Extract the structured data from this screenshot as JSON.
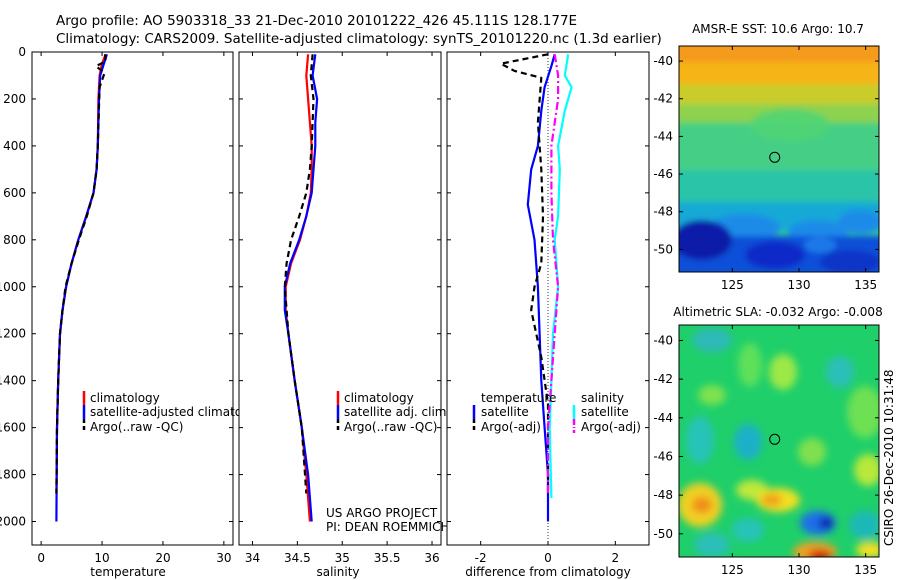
{
  "header": {
    "line1": "Argo profile: AO 5903318_33 21-Dec-2010 20101222_426 45.111S 128.177E",
    "line2": "Climatology: CARS2009. Satellite-adjusted climatology: synTS_20101220.nc (1.3d earlier)"
  },
  "colors": {
    "climatology": "#ff0000",
    "satellite": "#0000ff",
    "argo": "#000000",
    "sal_satellite": "#00ffff",
    "sal_argo": "#ff00ff",
    "map_marker": "#000000"
  },
  "credits": {
    "project": "US ARGO PROJECT",
    "pi": "PI: DEAN ROEMMICH",
    "stamp": "CSIRO 26-Dec-2010 10:31:48"
  },
  "chart_data": [
    {
      "type": "line",
      "xlabel": "temperature",
      "ylabel": "",
      "xlim": [
        -1.5,
        31.5
      ],
      "ylim": [
        2100,
        0
      ],
      "xticks": [
        0,
        10,
        20,
        30
      ],
      "yticks": [
        0,
        200,
        400,
        600,
        800,
        1000,
        1200,
        1400,
        1600,
        1800,
        2000
      ],
      "legend": {
        "placement": "lower-right",
        "entries": [
          "climatology",
          "satellite-adjusted climatology",
          "Argo(..raw -QC)"
        ]
      },
      "series": [
        {
          "name": "climatology",
          "color_key": "climatology",
          "dash": "solid",
          "x": [
            10.6,
            10.0,
            9.6,
            9.4,
            9.3,
            9.1,
            8.6,
            7.4,
            6.1,
            5.0,
            4.1,
            3.5,
            3.1,
            2.8,
            2.6,
            2.5
          ],
          "y": [
            10,
            50,
            100,
            200,
            400,
            500,
            600,
            700,
            800,
            900,
            1000,
            1100,
            1200,
            1400,
            1600,
            1880
          ]
        },
        {
          "name": "satellite-adjusted climatology",
          "color_key": "satellite",
          "dash": "solid",
          "x": [
            10.8,
            10.3,
            9.7,
            9.5,
            9.3,
            9.1,
            8.6,
            7.4,
            6.1,
            5.0,
            4.1,
            3.5,
            3.1,
            2.8,
            2.6,
            2.5
          ],
          "y": [
            10,
            50,
            100,
            200,
            400,
            500,
            600,
            700,
            800,
            900,
            1000,
            1100,
            1200,
            1400,
            1600,
            2000
          ]
        },
        {
          "name": "Argo(..raw -QC)",
          "color_key": "argo",
          "dash": "dashed",
          "x": [
            10.5,
            10.6,
            9.0,
            10.4,
            9.6,
            9.3,
            9.1,
            8.6,
            7.5,
            6.2,
            5.0,
            4.0,
            3.5,
            3.1,
            2.8,
            2.6,
            2.5
          ],
          "y": [
            10,
            40,
            60,
            90,
            150,
            400,
            500,
            600,
            700,
            800,
            900,
            1000,
            1100,
            1200,
            1400,
            1600,
            1880
          ]
        }
      ]
    },
    {
      "type": "line",
      "xlabel": "salinity",
      "ylabel": "",
      "xlim": [
        33.85,
        36.1
      ],
      "ylim": [
        2100,
        0
      ],
      "xticks": [
        34,
        34.5,
        35,
        35.5,
        36
      ],
      "xticklabels": [
        "34",
        "34.5",
        "35",
        "35.5",
        "36"
      ],
      "legend": {
        "placement": "lower-right",
        "entries": [
          "climatology",
          "satellite adj. clim.",
          "Argo(..raw -QC)"
        ]
      },
      "series": [
        {
          "name": "climatology",
          "color_key": "climatology",
          "dash": "solid",
          "x": [
            34.62,
            34.6,
            34.62,
            34.64,
            34.66,
            34.66,
            34.65,
            34.6,
            34.53,
            34.43,
            34.37,
            34.37,
            34.4,
            34.47,
            34.55,
            34.6,
            34.64
          ],
          "y": [
            10,
            100,
            200,
            300,
            400,
            500,
            600,
            700,
            800,
            900,
            1000,
            1100,
            1200,
            1400,
            1600,
            1800,
            2000
          ]
        },
        {
          "name": "satellite adj. clim.",
          "color_key": "satellite",
          "dash": "solid",
          "x": [
            34.7,
            34.67,
            34.72,
            34.7,
            34.7,
            34.68,
            34.66,
            34.6,
            34.52,
            34.42,
            34.36,
            34.36,
            34.4,
            34.47,
            34.55,
            34.62,
            34.66
          ],
          "y": [
            10,
            100,
            200,
            300,
            400,
            500,
            600,
            700,
            800,
            900,
            1000,
            1100,
            1200,
            1400,
            1600,
            1800,
            2000
          ]
        },
        {
          "name": "Argo(..raw -QC)",
          "color_key": "argo",
          "dash": "dashed",
          "x": [
            34.67,
            34.65,
            34.68,
            34.66,
            34.64,
            34.6,
            34.52,
            34.43,
            34.38,
            34.36,
            34.4,
            34.47,
            34.55,
            34.6
          ],
          "y": [
            10,
            100,
            200,
            400,
            500,
            600,
            700,
            800,
            900,
            1000,
            1200,
            1400,
            1600,
            1880
          ]
        }
      ]
    },
    {
      "type": "line",
      "xlabel": "difference from climatology",
      "ylabel": "",
      "xlim": [
        -3.0,
        3.0
      ],
      "ylim": [
        2100,
        0
      ],
      "xticks": [
        -2,
        0,
        2
      ],
      "legend": {
        "placement": "lower-center",
        "columns": [
          {
            "title": "temperature",
            "entries": [
              "satellite",
              "Argo(-adj)"
            ]
          },
          {
            "title": "salinity",
            "entries": [
              "satellite",
              "Argo(-adj)"
            ]
          }
        ]
      },
      "series": [
        {
          "name": "temperature satellite",
          "color_key": "satellite",
          "dash": "solid",
          "x": [
            0.2,
            0.1,
            -0.1,
            -0.2,
            -0.3,
            -0.5,
            -0.6,
            -0.4,
            -0.3,
            -0.25,
            -0.2,
            -0.1,
            0.0,
            0.0,
            0.0
          ],
          "y": [
            10,
            60,
            150,
            250,
            400,
            500,
            650,
            800,
            1000,
            1200,
            1400,
            1600,
            1800,
            1900,
            2000
          ]
        },
        {
          "name": "temperature Argo(-adj)",
          "color_key": "argo",
          "dash": "dashed",
          "x": [
            0.0,
            -1.4,
            -1.0,
            -0.2,
            -0.3,
            -0.2,
            -0.15,
            -0.2,
            -0.4,
            -0.5,
            -0.2,
            0.0,
            0.0
          ],
          "y": [
            10,
            50,
            80,
            110,
            300,
            500,
            700,
            900,
            1000,
            1100,
            1300,
            1500,
            1880
          ]
        },
        {
          "name": "salinity satellite",
          "color_key": "sal_satellite",
          "dash": "solid",
          "x": [
            0.6,
            0.5,
            0.7,
            0.5,
            0.3,
            0.35,
            0.3,
            0.2,
            0.3,
            0.15,
            0.1,
            0.05,
            0.1
          ],
          "y": [
            10,
            100,
            150,
            250,
            400,
            500,
            700,
            800,
            1000,
            1200,
            1400,
            1600,
            1900
          ]
        },
        {
          "name": "salinity Argo(-adj)",
          "color_key": "sal_argo",
          "dash": "dashdot",
          "x": [
            0.2,
            0.3,
            0.3,
            0.1,
            0.1,
            0.15,
            0.3,
            0.2,
            0.1,
            0.0,
            0.0
          ],
          "y": [
            10,
            100,
            200,
            400,
            600,
            800,
            1000,
            1200,
            1400,
            1600,
            1880
          ]
        }
      ]
    },
    {
      "type": "heatmap",
      "title": "AMSR-E SST: 10.6 Argo: 10.7",
      "xlim": [
        121,
        136
      ],
      "ylim": [
        -51.2,
        -39.2
      ],
      "xticks": [
        125,
        130,
        135
      ],
      "yticks": [
        -40,
        -42,
        -44,
        -46,
        -48,
        -50
      ],
      "marker": {
        "lon": 128.177,
        "lat": -45.111
      }
    },
    {
      "type": "heatmap",
      "title": "Altimetric SLA: -0.032  Argo: -0.008",
      "xlim": [
        121,
        136
      ],
      "ylim": [
        -51.2,
        -39.2
      ],
      "xticks": [
        125,
        130,
        135
      ],
      "yticks": [
        -40,
        -42,
        -44,
        -46,
        -48,
        -50
      ],
      "marker": {
        "lon": 128.177,
        "lat": -45.111
      }
    }
  ]
}
